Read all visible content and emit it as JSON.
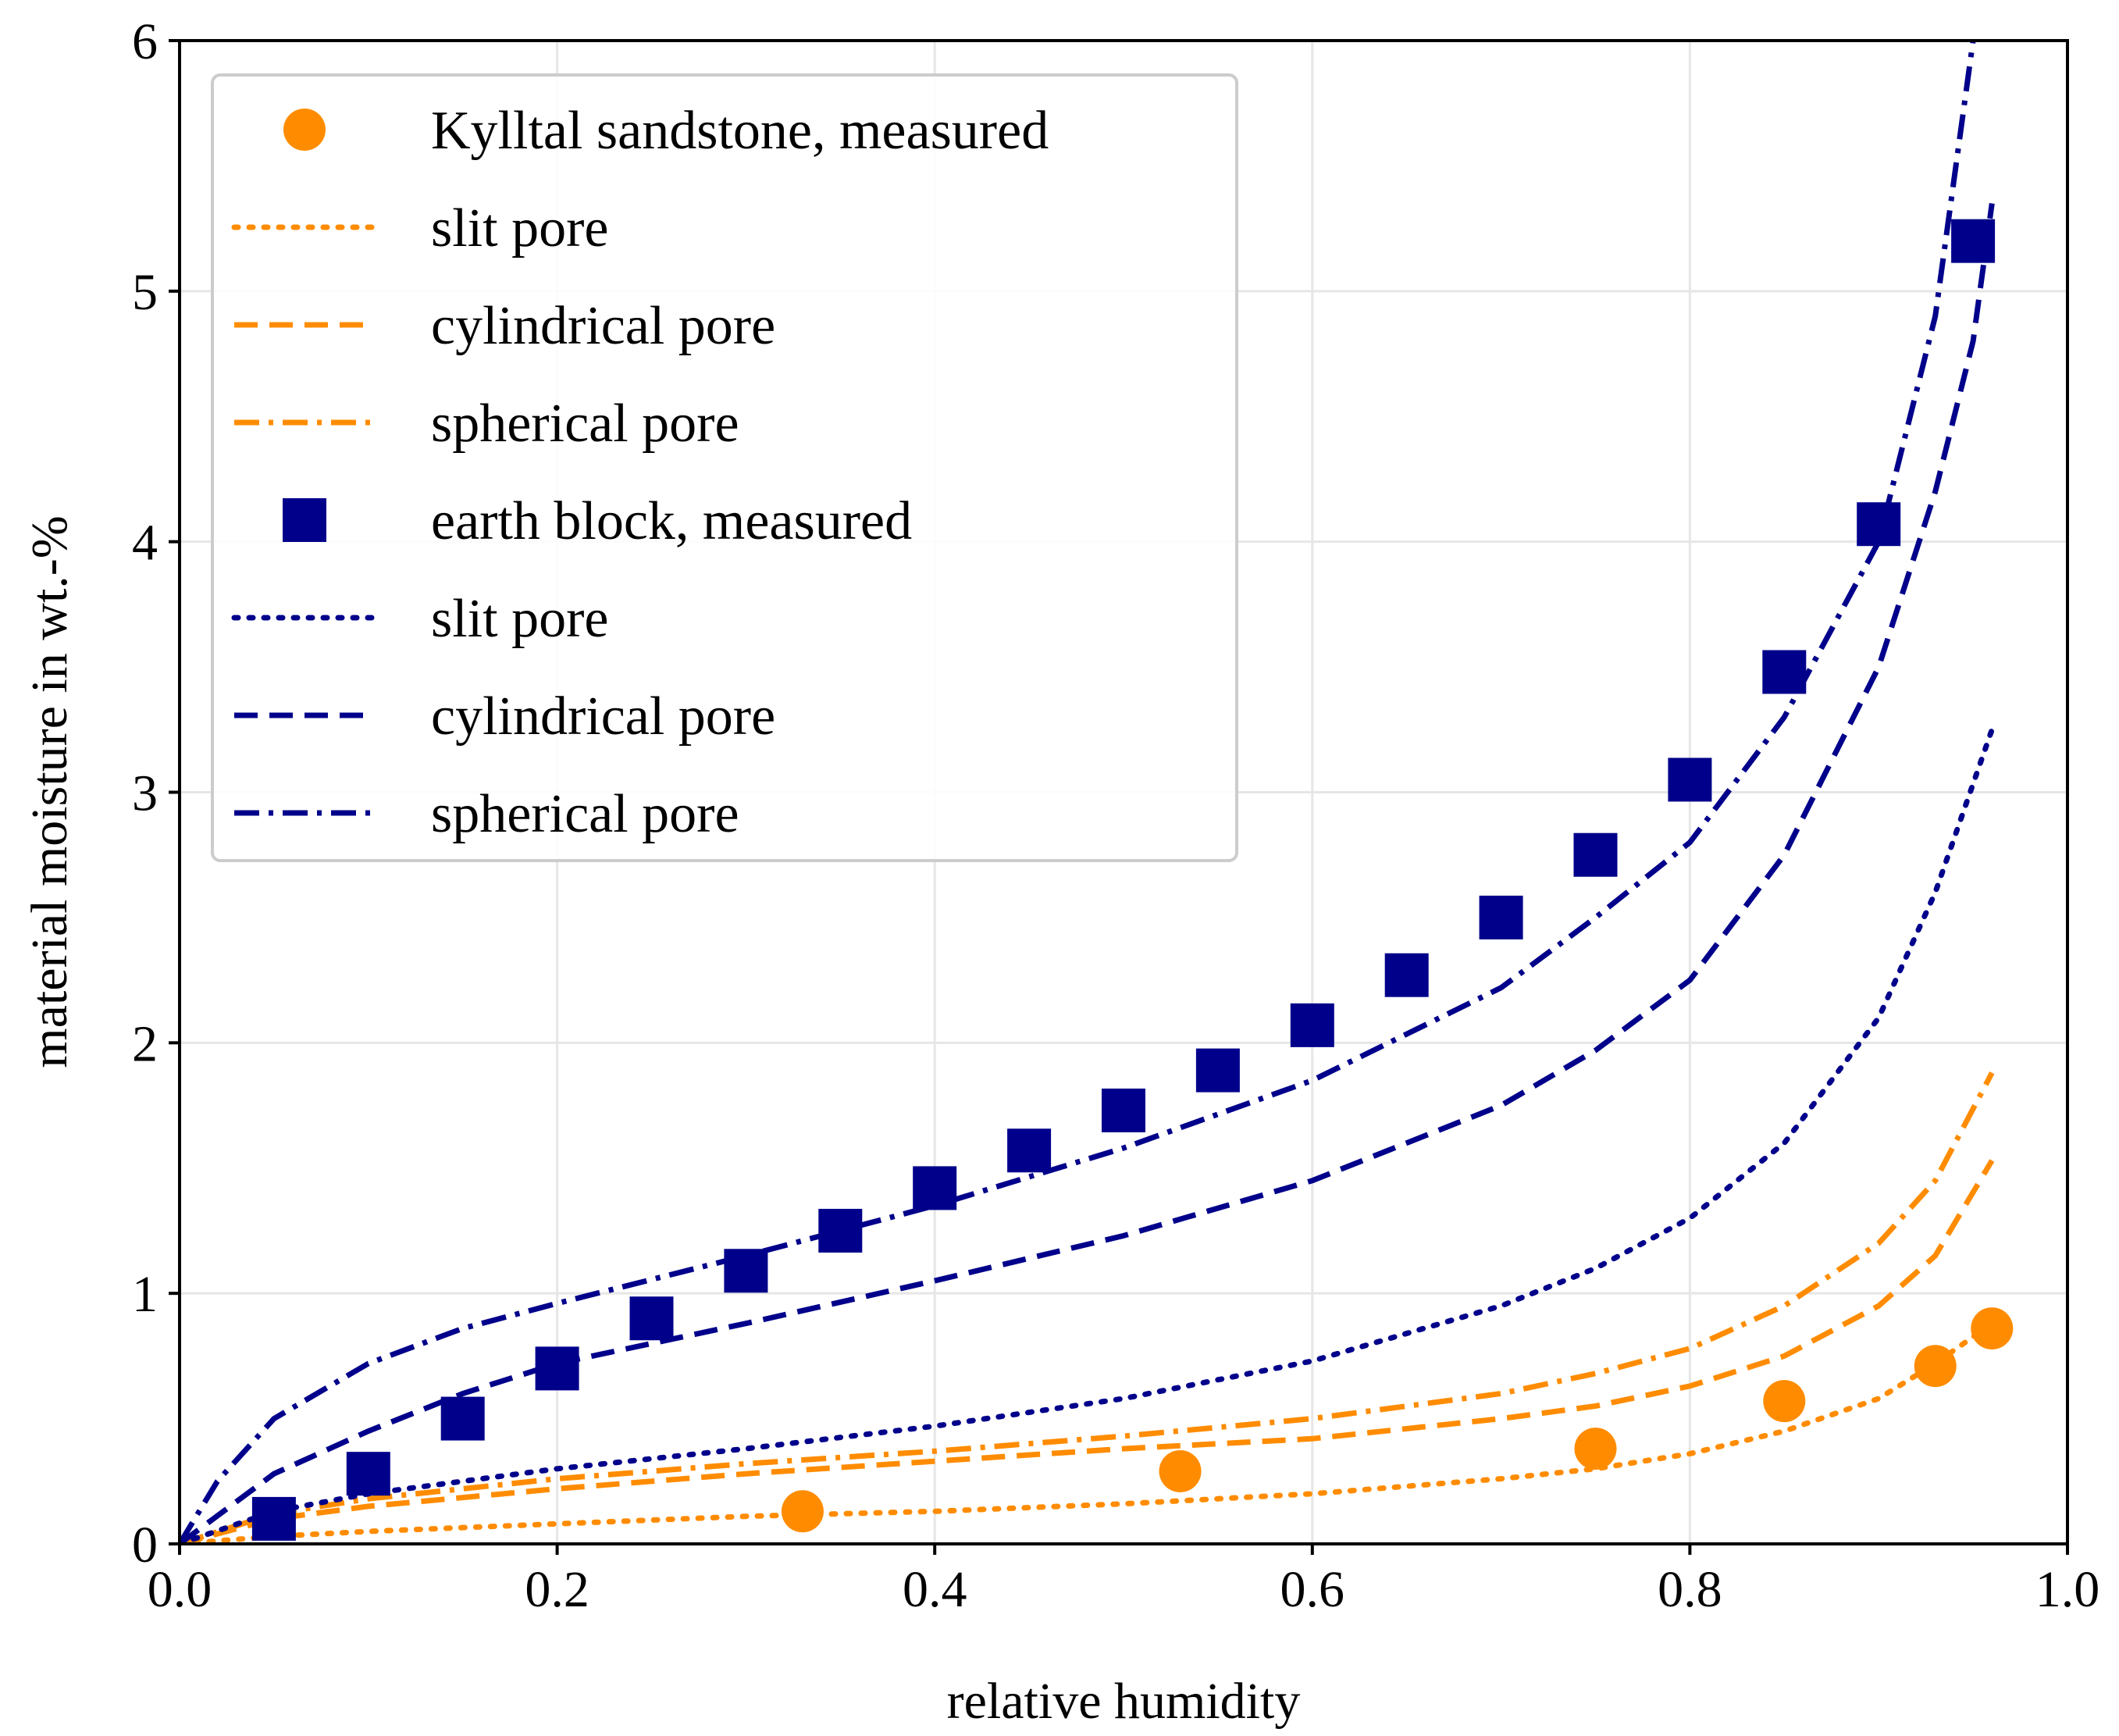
{
  "chart_data": {
    "type": "line",
    "xlabel": "relative humidity",
    "ylabel": "material moisture in wt.-%",
    "xlim": [
      0.0,
      1.0
    ],
    "ylim": [
      0,
      6
    ],
    "grid": true,
    "legend_position": "top-left",
    "x_ticks": [
      "0.0",
      "0.2",
      "0.4",
      "0.6",
      "0.8",
      "1.0"
    ],
    "y_ticks": [
      "0",
      "1",
      "2",
      "3",
      "4",
      "5",
      "6"
    ],
    "colors": {
      "orange": "#ff8c00",
      "navy": "#00008b"
    },
    "series": [
      {
        "name": "Kylltal sandstone, measured",
        "style": "circle",
        "color": "#ff8c00",
        "x": [
          0.33,
          0.53,
          0.75,
          0.85,
          0.93,
          0.96
        ],
        "y": [
          0.13,
          0.29,
          0.38,
          0.57,
          0.71,
          0.86
        ]
      },
      {
        "name": "slit pore",
        "style": "dotted",
        "color": "#ff8c00",
        "x": [
          0.0,
          0.05,
          0.1,
          0.2,
          0.3,
          0.4,
          0.5,
          0.6,
          0.7,
          0.75,
          0.8,
          0.85,
          0.9,
          0.93,
          0.96
        ],
        "y": [
          0.0,
          0.03,
          0.05,
          0.08,
          0.11,
          0.13,
          0.16,
          0.2,
          0.26,
          0.3,
          0.36,
          0.45,
          0.58,
          0.72,
          0.88
        ]
      },
      {
        "name": "cylindrical pore",
        "style": "dashed",
        "color": "#ff8c00",
        "x": [
          0.0,
          0.05,
          0.1,
          0.2,
          0.3,
          0.4,
          0.5,
          0.6,
          0.7,
          0.75,
          0.8,
          0.85,
          0.9,
          0.93,
          0.96
        ],
        "y": [
          0.0,
          0.1,
          0.15,
          0.22,
          0.28,
          0.33,
          0.38,
          0.42,
          0.5,
          0.55,
          0.63,
          0.75,
          0.95,
          1.15,
          1.53
        ]
      },
      {
        "name": "spherical pore",
        "style": "dashdot",
        "color": "#ff8c00",
        "x": [
          0.0,
          0.05,
          0.1,
          0.2,
          0.3,
          0.4,
          0.5,
          0.6,
          0.7,
          0.75,
          0.8,
          0.85,
          0.9,
          0.93,
          0.96
        ],
        "y": [
          0.0,
          0.12,
          0.18,
          0.26,
          0.32,
          0.37,
          0.43,
          0.5,
          0.6,
          0.68,
          0.78,
          0.95,
          1.2,
          1.45,
          1.88
        ]
      },
      {
        "name": "earth block, measured",
        "style": "square",
        "color": "#00008b",
        "x": [
          0.05,
          0.1,
          0.15,
          0.2,
          0.25,
          0.3,
          0.35,
          0.4,
          0.45,
          0.5,
          0.55,
          0.6,
          0.65,
          0.7,
          0.75,
          0.8,
          0.85,
          0.9,
          0.95
        ],
        "y": [
          0.1,
          0.28,
          0.5,
          0.7,
          0.9,
          1.09,
          1.25,
          1.42,
          1.57,
          1.73,
          1.89,
          2.07,
          2.27,
          2.5,
          2.75,
          3.05,
          3.48,
          4.07,
          5.2
        ]
      },
      {
        "name": "slit pore",
        "style": "dotted",
        "color": "#00008b",
        "x": [
          0.0,
          0.05,
          0.1,
          0.2,
          0.3,
          0.4,
          0.5,
          0.6,
          0.7,
          0.75,
          0.8,
          0.85,
          0.9,
          0.93,
          0.96
        ],
        "y": [
          0.0,
          0.13,
          0.2,
          0.3,
          0.38,
          0.47,
          0.58,
          0.73,
          0.95,
          1.1,
          1.3,
          1.6,
          2.1,
          2.6,
          3.25
        ]
      },
      {
        "name": "cylindrical pore",
        "style": "dashed",
        "color": "#00008b",
        "x": [
          0.0,
          0.05,
          0.1,
          0.15,
          0.2,
          0.3,
          0.4,
          0.5,
          0.6,
          0.7,
          0.75,
          0.8,
          0.85,
          0.9,
          0.93,
          0.95,
          0.96
        ],
        "y": [
          0.0,
          0.28,
          0.45,
          0.6,
          0.72,
          0.88,
          1.05,
          1.23,
          1.45,
          1.75,
          1.97,
          2.25,
          2.75,
          3.5,
          4.2,
          4.8,
          5.35
        ]
      },
      {
        "name": "spherical pore",
        "style": "dashdot",
        "color": "#00008b",
        "x": [
          0.0,
          0.02,
          0.05,
          0.1,
          0.15,
          0.2,
          0.3,
          0.4,
          0.5,
          0.6,
          0.7,
          0.75,
          0.8,
          0.85,
          0.9,
          0.93,
          0.95
        ],
        "y": [
          0.0,
          0.25,
          0.5,
          0.72,
          0.86,
          0.96,
          1.15,
          1.35,
          1.58,
          1.85,
          2.22,
          2.5,
          2.8,
          3.3,
          4.0,
          4.9,
          6.0
        ]
      }
    ]
  }
}
